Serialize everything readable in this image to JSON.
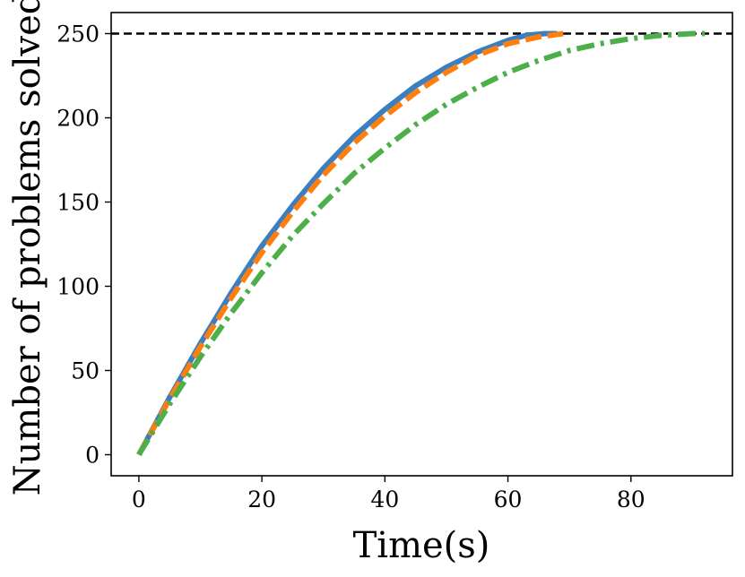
{
  "chart_data": {
    "type": "line",
    "title": "",
    "xlabel": "Time(s)",
    "ylabel": "Number of problems solved",
    "xlim": [
      -4.5,
      96.5
    ],
    "ylim": [
      -12.5,
      262.5
    ],
    "xticks": [
      0,
      20,
      40,
      60,
      80
    ],
    "yticks": [
      0,
      50,
      100,
      150,
      200,
      250
    ],
    "grid": false,
    "legend": "none",
    "reference_line": {
      "y": 250,
      "color": "#000000",
      "style": "dashed"
    },
    "series": [
      {
        "color": "#3b7fc0",
        "style": "solid",
        "x": [
          0,
          5,
          10,
          15,
          20,
          25,
          30,
          35,
          40,
          45,
          50,
          55,
          60,
          63,
          66,
          68
        ],
        "y": [
          0,
          34,
          66,
          96,
          124,
          148,
          170,
          189,
          205,
          219,
          230,
          239,
          246,
          249,
          250,
          250
        ]
      },
      {
        "color": "#ff7f0e",
        "style": "dashed",
        "x": [
          0,
          5,
          10,
          15,
          20,
          25,
          30,
          35,
          40,
          45,
          50,
          55,
          60,
          65,
          69
        ],
        "y": [
          0,
          33,
          64,
          93,
          120,
          144,
          166,
          185,
          201,
          215,
          227,
          237,
          244,
          248,
          250
        ]
      },
      {
        "color": "#4daf4a",
        "style": "dashdot",
        "x": [
          0,
          5,
          10,
          15,
          20,
          25,
          30,
          35,
          40,
          45,
          50,
          55,
          60,
          65,
          70,
          75,
          80,
          85,
          90,
          92
        ],
        "y": [
          0,
          30,
          58,
          84,
          108,
          130,
          149,
          167,
          182,
          196,
          208,
          218,
          227,
          234,
          240,
          244,
          247,
          249,
          250,
          250
        ]
      }
    ]
  }
}
